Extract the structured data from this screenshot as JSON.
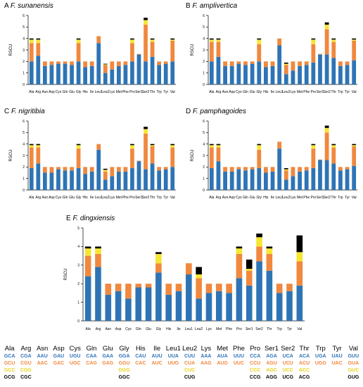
{
  "colors": {
    "segments": [
      "#2E74B5",
      "#F0883E",
      "#F5E632",
      "#000000"
    ],
    "codon_text": [
      "#2E74B5",
      "#F0883E",
      "#E8D21D",
      "#000000"
    ]
  },
  "panels": [
    {
      "letter": "A",
      "species": "F. sunanensis"
    },
    {
      "letter": "B",
      "species": "F. amplivertica"
    },
    {
      "letter": "C",
      "species": "F. nigritibia"
    },
    {
      "letter": "D",
      "species": "F. pamphagoides"
    },
    {
      "letter": "E",
      "species": "F. dingxiensis"
    }
  ],
  "chart_data": [
    {
      "type": "bar",
      "title": "F. sunanensis",
      "ylabel": "RSCU",
      "ylim": [
        0,
        6
      ],
      "yticks": [
        0,
        1,
        2,
        3,
        4,
        5,
        6
      ],
      "categories": [
        "Ala",
        "Arg",
        "Asn",
        "Asp",
        "Cys",
        "Gln",
        "Glu",
        "Gly",
        "His",
        "Ile",
        "Leu1",
        "Leu2",
        "Lys",
        "Met",
        "Phe",
        "Pro",
        "Ser1",
        "Ser2",
        "Thr",
        "Trp",
        "Tyr",
        "Val"
      ],
      "stacks": [
        [
          2.0,
          1.6,
          0.3,
          0.1
        ],
        [
          2.5,
          1.1,
          0.3,
          0.1
        ],
        [
          1.6,
          0.4
        ],
        [
          1.7,
          0.3
        ],
        [
          1.8,
          0.2
        ],
        [
          1.8,
          0.2
        ],
        [
          1.7,
          0.3
        ],
        [
          2.0,
          1.6,
          0.3,
          0.1
        ],
        [
          1.5,
          0.5
        ],
        [
          1.6,
          0.4
        ],
        [
          3.6,
          0.6
        ],
        [
          1.0,
          0.7,
          0.05,
          0.05
        ],
        [
          1.3,
          0.7
        ],
        [
          1.6,
          0.4
        ],
        [
          1.7,
          0.3
        ],
        [
          2.0,
          1.6,
          0.3,
          0.1
        ],
        [
          2.6,
          0.05
        ],
        [
          2.0,
          3.2,
          0.4,
          0.2
        ],
        [
          2.4,
          1.3,
          0.2,
          0.1
        ],
        [
          1.7,
          0.3
        ],
        [
          1.8,
          0.2
        ],
        [
          2.0,
          1.8,
          0.1,
          0.1
        ]
      ]
    },
    {
      "type": "bar",
      "title": "F. amplivertica",
      "ylabel": "RSCU",
      "ylim": [
        0,
        6
      ],
      "yticks": [
        0,
        1,
        2,
        3,
        4,
        5,
        6
      ],
      "categories": [
        "Ala",
        "Arg",
        "Asn",
        "Asp",
        "Cys",
        "Gln",
        "Glu",
        "Gly",
        "His",
        "Ile",
        "Leu1",
        "Leu2",
        "Lys",
        "Met",
        "Phe",
        "Pro",
        "Ser1",
        "Ser2",
        "Thr",
        "Trp",
        "Tyr",
        "Val"
      ],
      "stacks": [
        [
          2.0,
          1.7,
          0.2,
          0.1
        ],
        [
          2.4,
          1.3,
          0.2,
          0.1
        ],
        [
          1.6,
          0.4
        ],
        [
          1.6,
          0.4
        ],
        [
          1.8,
          0.2
        ],
        [
          1.7,
          0.3
        ],
        [
          1.8,
          0.2
        ],
        [
          2.0,
          1.5,
          0.4,
          0.1
        ],
        [
          1.5,
          0.5
        ],
        [
          1.6,
          0.4
        ],
        [
          3.4,
          0.6
        ],
        [
          0.9,
          0.8,
          0.1,
          0.1
        ],
        [
          1.2,
          0.8
        ],
        [
          1.6,
          0.4
        ],
        [
          1.7,
          0.3
        ],
        [
          1.9,
          1.6,
          0.4,
          0.1
        ],
        [
          2.6,
          0.05
        ],
        [
          2.6,
          2.2,
          0.4,
          0.2
        ],
        [
          2.3,
          1.4,
          0.2,
          0.1
        ],
        [
          1.6,
          0.4
        ],
        [
          1.7,
          0.3
        ],
        [
          2.1,
          1.7,
          0.1,
          0.1
        ]
      ]
    },
    {
      "type": "bar",
      "title": "F. nigritibia",
      "ylabel": "RSCU",
      "ylim": [
        0,
        6
      ],
      "yticks": [
        0,
        1,
        2,
        3,
        4,
        5,
        6
      ],
      "categories": [
        "Ala",
        "Arg",
        "Asn",
        "Asp",
        "Cys",
        "Gln",
        "Glu",
        "Gly",
        "His",
        "Ile",
        "Leu1",
        "Leu2",
        "Lys",
        "Met",
        "Phe",
        "Pro",
        "Ser1",
        "Ser2",
        "Thr",
        "Trp",
        "Tyr",
        "Val"
      ],
      "stacks": [
        [
          1.9,
          1.8,
          0.2,
          0.1
        ],
        [
          2.3,
          1.4,
          0.2,
          0.1
        ],
        [
          1.5,
          0.5
        ],
        [
          1.5,
          0.5
        ],
        [
          1.8,
          0.2
        ],
        [
          1.7,
          0.3
        ],
        [
          1.7,
          0.3
        ],
        [
          1.9,
          1.7,
          0.3,
          0.1
        ],
        [
          1.4,
          0.6
        ],
        [
          1.6,
          0.4
        ],
        [
          3.5,
          0.5
        ],
        [
          0.9,
          0.7,
          0.15,
          0.1
        ],
        [
          1.2,
          0.8
        ],
        [
          1.6,
          0.4
        ],
        [
          1.6,
          0.4
        ],
        [
          1.9,
          1.7,
          0.3,
          0.1
        ],
        [
          2.5,
          0.05
        ],
        [
          1.8,
          3.1,
          0.4,
          0.2
        ],
        [
          2.3,
          1.5,
          0.1,
          0.1
        ],
        [
          1.7,
          0.3
        ],
        [
          1.8,
          0.2
        ],
        [
          2.0,
          1.7,
          0.2,
          0.1
        ]
      ]
    },
    {
      "type": "bar",
      "title": "F. pamphagoides",
      "ylabel": "RSCU",
      "ylim": [
        0,
        6
      ],
      "yticks": [
        0,
        1,
        2,
        3,
        4,
        5,
        6
      ],
      "categories": [
        "Ala",
        "Arg",
        "Asn",
        "Asp",
        "Cys",
        "Gln",
        "Glu",
        "Gly",
        "His",
        "Ile",
        "Leu1",
        "Leu2",
        "Lys",
        "Met",
        "Phe",
        "Pro",
        "Ser1",
        "Ser2",
        "Thr",
        "Trp",
        "Tyr",
        "Val"
      ],
      "stacks": [
        [
          1.9,
          1.8,
          0.2,
          0.1
        ],
        [
          2.5,
          1.2,
          0.2,
          0.1
        ],
        [
          1.6,
          0.4
        ],
        [
          1.6,
          0.4
        ],
        [
          1.8,
          0.2
        ],
        [
          1.7,
          0.3
        ],
        [
          1.8,
          0.2
        ],
        [
          1.9,
          1.6,
          0.4,
          0.1
        ],
        [
          1.5,
          0.5
        ],
        [
          1.6,
          0.4
        ],
        [
          3.6,
          0.6
        ],
        [
          0.9,
          0.8,
          0.1,
          0.1
        ],
        [
          1.2,
          0.8
        ],
        [
          1.6,
          0.4
        ],
        [
          1.7,
          0.3
        ],
        [
          1.9,
          1.7,
          0.3,
          0.1
        ],
        [
          2.6,
          0.05
        ],
        [
          2.6,
          2.4,
          0.4,
          0.2
        ],
        [
          2.3,
          1.4,
          0.2,
          0.1
        ],
        [
          1.7,
          0.3
        ],
        [
          1.8,
          0.2
        ],
        [
          2.1,
          1.7,
          0.1,
          0.1
        ]
      ]
    },
    {
      "type": "bar",
      "title": "F. dingxiensis",
      "ylabel": "RSCU",
      "ylim": [
        0,
        5
      ],
      "yticks": [
        0,
        1,
        2,
        3,
        4,
        5
      ],
      "categories": [
        "Ala",
        "Arg",
        "Asn",
        "Asp",
        "Cys",
        "Gln",
        "Glu",
        "Gly",
        "His",
        "Ile",
        "Leu1",
        "Leu2",
        "Lys",
        "Met",
        "Phe",
        "Pro",
        "Ser1",
        "Ser2",
        "Thr",
        "Trp",
        "Tyr",
        "Val"
      ],
      "stacks": [
        [
          2.4,
          1.1,
          0.4,
          0.1
        ],
        [
          2.9,
          0.7,
          0.3,
          0.1
        ],
        [
          1.4,
          0.6
        ],
        [
          1.6,
          0.4
        ],
        [
          1.2,
          0.8
        ],
        [
          1.8,
          0.2
        ],
        [
          1.8,
          0.2
        ],
        [
          2.6,
          0.5,
          0.5,
          0.1
        ],
        [
          1.4,
          0.6
        ],
        [
          1.6,
          0.4
        ],
        [
          2.5,
          0.6
        ],
        [
          1.2,
          1.1,
          0.2,
          0.4
        ],
        [
          1.5,
          0.5
        ],
        [
          1.6,
          0.4
        ],
        [
          1.5,
          0.5
        ],
        [
          2.3,
          1.3,
          0.3,
          0.1
        ],
        [
          1.9,
          0.8,
          0.1,
          0.5
        ],
        [
          3.2,
          0.8,
          0.5,
          0.2
        ],
        [
          2.7,
          0.9,
          0.3,
          0.1
        ],
        [
          1.5,
          0.5
        ],
        [
          1.6,
          0.4
        ],
        [
          1.9,
          1.3,
          0.5,
          0.9
        ]
      ]
    }
  ],
  "codon_table": [
    {
      "aa": "Ala",
      "codons": [
        "GCA",
        "GCU",
        "GCC",
        "GCG"
      ]
    },
    {
      "aa": "Arg",
      "codons": [
        "CGA",
        "CGU",
        "CGG",
        "CGC"
      ]
    },
    {
      "aa": "Asn",
      "codons": [
        "AAU",
        "AAC",
        "",
        ""
      ]
    },
    {
      "aa": "Asp",
      "codons": [
        "GAU",
        "GAC",
        "",
        ""
      ]
    },
    {
      "aa": "Cys",
      "codons": [
        "UGU",
        "UGC",
        "",
        ""
      ]
    },
    {
      "aa": "Gln",
      "codons": [
        "CAA",
        "CAG",
        "",
        ""
      ]
    },
    {
      "aa": "Glu",
      "codons": [
        "GAA",
        "GAG",
        "",
        ""
      ]
    },
    {
      "aa": "Gly",
      "codons": [
        "GGA",
        "GGU",
        "GGG",
        "GGC"
      ]
    },
    {
      "aa": "His",
      "codons": [
        "CAU",
        "CAC",
        "",
        ""
      ]
    },
    {
      "aa": "Ile",
      "codons": [
        "AUU",
        "AUC",
        "",
        ""
      ]
    },
    {
      "aa": "Leu1",
      "codons": [
        "UUA",
        "UUG",
        "",
        ""
      ]
    },
    {
      "aa": "Leu2",
      "codons": [
        "CUU",
        "CUA",
        "CUC",
        "CUG"
      ]
    },
    {
      "aa": "Lys",
      "codons": [
        "AAA",
        "AAG",
        "",
        ""
      ]
    },
    {
      "aa": "Met",
      "codons": [
        "AUA",
        "AUG",
        "",
        ""
      ]
    },
    {
      "aa": "Phe",
      "codons": [
        "UUU",
        "UUC",
        "",
        ""
      ]
    },
    {
      "aa": "Pro",
      "codons": [
        "CCA",
        "CCU",
        "CCC",
        "CCG"
      ]
    },
    {
      "aa": "Ser1",
      "codons": [
        "AGA",
        "AGU",
        "AGC",
        "AGG"
      ]
    },
    {
      "aa": "Ser2",
      "codons": [
        "UCA",
        "UCU",
        "UCC",
        "UCG"
      ]
    },
    {
      "aa": "Thr",
      "codons": [
        "ACA",
        "ACU",
        "ACC",
        "ACG"
      ]
    },
    {
      "aa": "Trp",
      "codons": [
        "UGA",
        "UGG",
        "",
        ""
      ]
    },
    {
      "aa": "Tyr",
      "codons": [
        "UAU",
        "UAC",
        "",
        ""
      ]
    },
    {
      "aa": "Val",
      "codons": [
        "GUU",
        "GUA",
        "GUC",
        "GUG"
      ]
    }
  ]
}
